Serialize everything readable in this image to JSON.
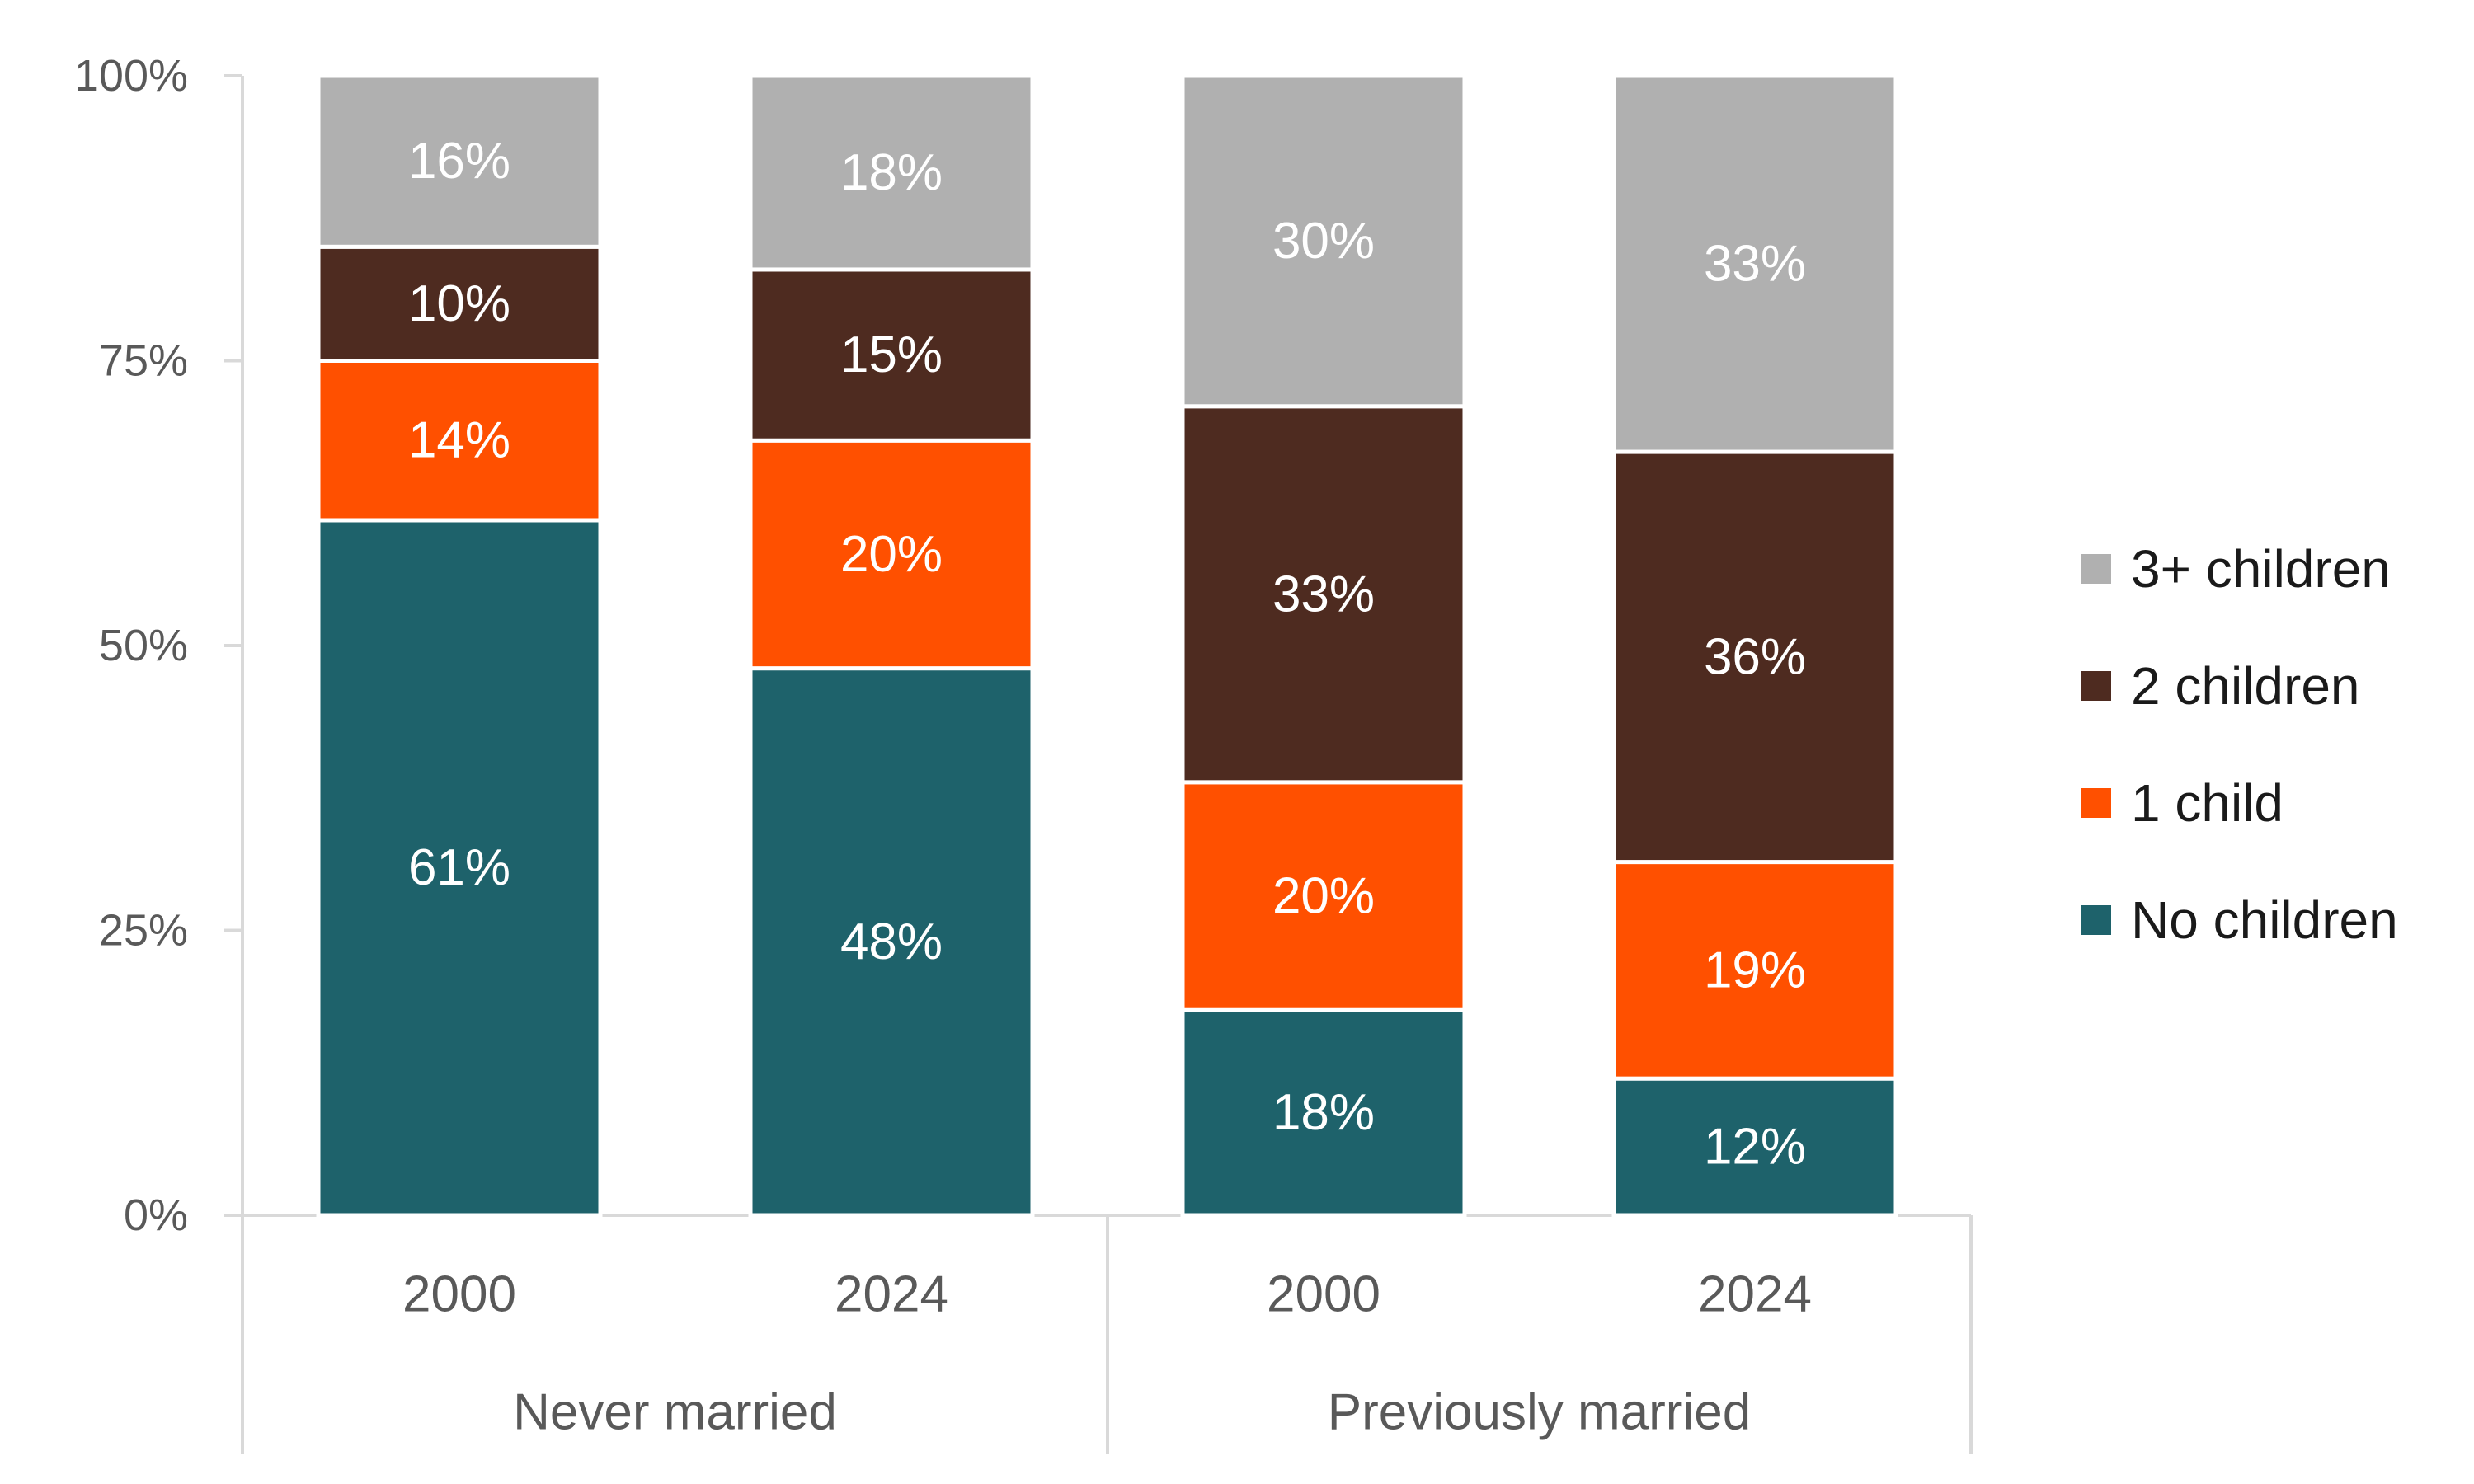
{
  "chart_data": {
    "type": "bar",
    "stacked": true,
    "orientation": "vertical",
    "title": "",
    "xlabel": "",
    "ylabel": "",
    "ylim": [
      0,
      100
    ],
    "y_ticks": [
      "0%",
      "25%",
      "50%",
      "75%",
      "100%"
    ],
    "y_tick_values": [
      0,
      25,
      50,
      75,
      100
    ],
    "groups": [
      "Never married",
      "Previously married"
    ],
    "categories": [
      "2000",
      "2024",
      "2000",
      "2024"
    ],
    "category_group": [
      0,
      0,
      1,
      1
    ],
    "legend_position": "right",
    "series": [
      {
        "name": "No children",
        "color": "#1E626B",
        "values": [
          61,
          48,
          18,
          12
        ],
        "labels": [
          "61%",
          "48%",
          "18%",
          "12%"
        ]
      },
      {
        "name": "1 child",
        "color": "#FF5000",
        "values": [
          14,
          20,
          20,
          19
        ],
        "labels": [
          "14%",
          "20%",
          "20%",
          "19%"
        ]
      },
      {
        "name": "2 children",
        "color": "#4E2B20",
        "values": [
          10,
          15,
          33,
          36
        ],
        "labels": [
          "10%",
          "15%",
          "33%",
          "36%"
        ]
      },
      {
        "name": "3+ children",
        "color": "#B0B0B0",
        "values": [
          16,
          18,
          30,
          33
        ],
        "labels": [
          "16%",
          "18%",
          "30%",
          "33%"
        ]
      }
    ],
    "legend_order": [
      "3+ children",
      "2 children",
      "1 child",
      "No children"
    ]
  }
}
